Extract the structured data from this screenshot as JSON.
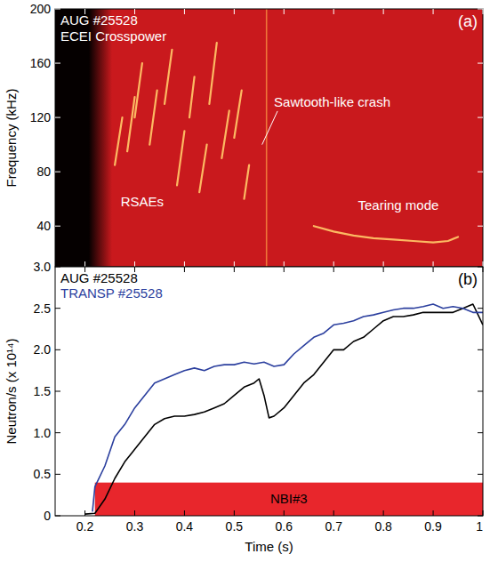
{
  "chart_data": [
    {
      "type": "spectrogram",
      "panel_label": "(a)",
      "title": "AUG #25528",
      "subtitle": "ECEI Crosspower",
      "y_label": "Frequency (kHz)",
      "xlim": [
        0.14,
        1.0
      ],
      "ylim": [
        10,
        200
      ],
      "xticks": [
        0.2,
        0.3,
        0.4,
        0.5,
        0.6,
        0.7,
        0.8,
        0.9,
        1
      ],
      "yticks": [
        40,
        80,
        120,
        160,
        200
      ],
      "tick_labels": "y",
      "color": "#c9191d",
      "signal_start": 0.215,
      "series": [
        {
          "name": "RSAEs",
          "color": "#ffc266",
          "label_x": 0.315,
          "label_y": 58,
          "x": [
            0.26,
            0.275,
            null,
            0.285,
            0.3,
            null,
            0.3,
            0.315,
            null,
            0.33,
            0.345,
            null,
            0.36,
            0.375,
            null,
            0.385,
            0.4,
            null,
            0.41,
            0.42,
            null,
            0.43,
            0.445,
            null,
            0.45,
            0.465,
            null,
            0.475,
            0.49,
            null,
            0.5,
            0.515,
            null,
            0.52,
            0.53
          ],
          "values": [
            85,
            120,
            null,
            95,
            135,
            null,
            120,
            160,
            null,
            100,
            140,
            null,
            130,
            170,
            null,
            70,
            110,
            null,
            120,
            150,
            null,
            65,
            100,
            null,
            130,
            175,
            null,
            90,
            125,
            null,
            105,
            140,
            null,
            60,
            85
          ]
        },
        {
          "name": "Sawtooth-like crash",
          "color": "#f07a3a",
          "label_x": 0.58,
          "label_y": 128,
          "arrow_to": [
            0.556,
            100
          ],
          "x": [
            0.565,
            0.565
          ],
          "values": [
            10,
            200
          ]
        },
        {
          "name": "Tearing mode",
          "color": "#ffc266",
          "label_x": 0.83,
          "label_y": 55,
          "x": [
            0.66,
            0.7,
            0.74,
            0.78,
            0.82,
            0.86,
            0.9,
            0.93,
            0.95
          ],
          "values": [
            40,
            36,
            33,
            31,
            30,
            29,
            28,
            29,
            32
          ]
        }
      ]
    },
    {
      "type": "line",
      "panel_label": "(b)",
      "x_label": "Time (s)",
      "y_label": "Neutron/s (x 10¹⁴)",
      "xlim": [
        0.14,
        1.0
      ],
      "ylim": [
        0,
        3.0
      ],
      "xticks": [
        0.2,
        0.3,
        0.4,
        0.5,
        0.6,
        0.7,
        0.8,
        0.9,
        1
      ],
      "yticks": [
        0,
        0.5,
        {
          "value": 1,
          "label": "1.0"
        },
        1.5,
        {
          "value": 2,
          "label": "2.0"
        },
        2.5,
        {
          "value": 3,
          "label": "3.0"
        }
      ],
      "legend": "top-left",
      "series": [
        {
          "name": "AUG #25528",
          "color": "#000000",
          "x": [
            0.2,
            0.22,
            0.24,
            0.26,
            0.28,
            0.3,
            0.32,
            0.34,
            0.36,
            0.38,
            0.4,
            0.42,
            0.44,
            0.46,
            0.48,
            0.5,
            0.52,
            0.54,
            0.55,
            0.56,
            0.57,
            0.58,
            0.6,
            0.62,
            0.64,
            0.66,
            0.68,
            0.7,
            0.72,
            0.74,
            0.76,
            0.78,
            0.8,
            0.82,
            0.84,
            0.86,
            0.88,
            0.9,
            0.92,
            0.94,
            0.96,
            0.98,
            1.0
          ],
          "values": [
            0.02,
            0.03,
            0.2,
            0.45,
            0.65,
            0.8,
            0.95,
            1.1,
            1.17,
            1.2,
            1.2,
            1.22,
            1.25,
            1.3,
            1.35,
            1.45,
            1.55,
            1.6,
            1.65,
            1.45,
            1.18,
            1.2,
            1.3,
            1.45,
            1.6,
            1.7,
            1.85,
            2.0,
            2.0,
            2.1,
            2.15,
            2.25,
            2.35,
            2.4,
            2.4,
            2.42,
            2.45,
            2.45,
            2.45,
            2.45,
            2.5,
            2.55,
            2.3
          ]
        },
        {
          "name": "TRANSP #25528",
          "color": "#2b3f9e",
          "x": [
            0.215,
            0.22,
            0.24,
            0.26,
            0.28,
            0.3,
            0.32,
            0.34,
            0.36,
            0.38,
            0.4,
            0.42,
            0.44,
            0.46,
            0.48,
            0.5,
            0.52,
            0.54,
            0.56,
            0.58,
            0.6,
            0.62,
            0.64,
            0.66,
            0.68,
            0.7,
            0.72,
            0.74,
            0.76,
            0.78,
            0.8,
            0.82,
            0.84,
            0.86,
            0.88,
            0.9,
            0.92,
            0.94,
            0.96,
            0.98,
            1.0
          ],
          "values": [
            0.05,
            0.35,
            0.6,
            0.95,
            1.1,
            1.3,
            1.45,
            1.6,
            1.65,
            1.7,
            1.75,
            1.78,
            1.75,
            1.8,
            1.82,
            1.82,
            1.85,
            1.83,
            1.85,
            1.8,
            1.82,
            1.95,
            2.05,
            2.15,
            2.2,
            2.3,
            2.32,
            2.35,
            2.4,
            2.42,
            2.45,
            2.48,
            2.5,
            2.5,
            2.52,
            2.55,
            2.5,
            2.52,
            2.5,
            2.45,
            2.45
          ]
        }
      ],
      "bars": [
        {
          "label": "NBI#3",
          "start": 0.22,
          "end": 1.0,
          "value": 0.4,
          "color": "#e8262c"
        }
      ]
    }
  ]
}
